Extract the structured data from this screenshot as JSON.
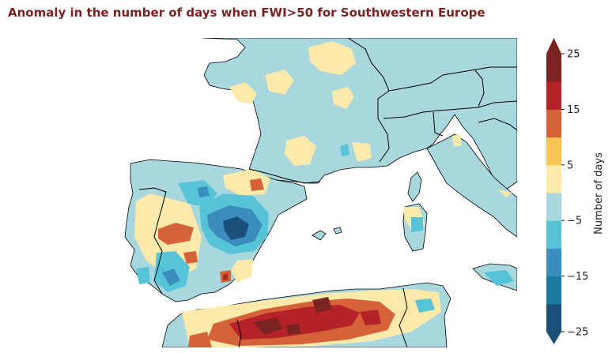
{
  "title": "Anomaly in the number of days when FWI>50 for Southwestern Europe",
  "colorbar": {
    "label": "Number of days",
    "tick_labels": [
      "25",
      "15",
      "5",
      "−5",
      "−15",
      "−25"
    ],
    "levels": [
      -25,
      -20,
      -15,
      -10,
      -5,
      0,
      5,
      10,
      15,
      20,
      25
    ],
    "colors": [
      "#1a4f7a",
      "#1b7aa0",
      "#3b8dbd",
      "#56c4d6",
      "#a8d8dd",
      "#fde9a9",
      "#f8c44e",
      "#d6623a",
      "#b52227",
      "#7b2222"
    ],
    "extend_low_color": "#1a4f7a",
    "extend_high_color": "#7b2222"
  },
  "map": {
    "region": "Southwestern Europe",
    "ocean_color": "#ffffff",
    "land_base_color": "#a8d8dd",
    "border_color": "#000000"
  }
}
